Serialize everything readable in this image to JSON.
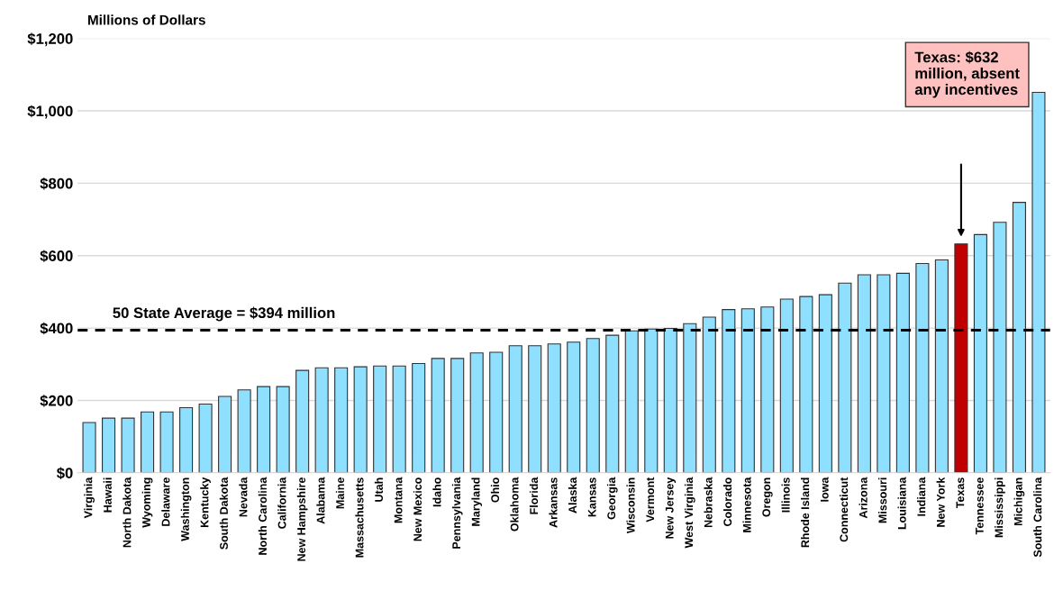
{
  "chart_data": {
    "type": "bar",
    "ylabel": "Millions of Dollars",
    "categories": [
      "Virginia",
      "Hawaii",
      "North Dakota",
      "Wyoming",
      "Delaware",
      "Washington",
      "Kentucky",
      "South Dakota",
      "Nevada",
      "North Carolina",
      "California",
      "New Hampshire",
      "Alabama",
      "Maine",
      "Massachusetts",
      "Utah",
      "Montana",
      "New Mexico",
      "Idaho",
      "Pennsylvania",
      "Maryland",
      "Ohio",
      "Oklahoma",
      "Florida",
      "Arkansas",
      "Alaska",
      "Kansas",
      "Georgia",
      "Wisconsin",
      "Vermont",
      "New Jersey",
      "West Virginia",
      "Nebraska",
      "Colorado",
      "Minnesota",
      "Oregon",
      "Illinois",
      "Rhode Island",
      "Iowa",
      "Connecticut",
      "Arizona",
      "Missouri",
      "Louisiana",
      "Indiana",
      "New York",
      "Texas",
      "Tennessee",
      "Mississippi",
      "Michigan",
      "South Carolina"
    ],
    "values": [
      139,
      151,
      151,
      168,
      168,
      180,
      190,
      211,
      229,
      238,
      238,
      283,
      290,
      290,
      293,
      295,
      295,
      302,
      316,
      316,
      331,
      333,
      351,
      351,
      356,
      361,
      371,
      380,
      392,
      397,
      399,
      412,
      430,
      451,
      453,
      458,
      480,
      487,
      492,
      524,
      547,
      547,
      551,
      578,
      588,
      632,
      658,
      692,
      747,
      1051
    ],
    "colors": [
      "#8fdfff",
      "#8fdfff",
      "#8fdfff",
      "#8fdfff",
      "#8fdfff",
      "#8fdfff",
      "#8fdfff",
      "#8fdfff",
      "#8fdfff",
      "#8fdfff",
      "#8fdfff",
      "#8fdfff",
      "#8fdfff",
      "#8fdfff",
      "#8fdfff",
      "#8fdfff",
      "#8fdfff",
      "#8fdfff",
      "#8fdfff",
      "#8fdfff",
      "#8fdfff",
      "#8fdfff",
      "#8fdfff",
      "#8fdfff",
      "#8fdfff",
      "#8fdfff",
      "#8fdfff",
      "#8fdfff",
      "#8fdfff",
      "#8fdfff",
      "#8fdfff",
      "#8fdfff",
      "#8fdfff",
      "#8fdfff",
      "#8fdfff",
      "#8fdfff",
      "#8fdfff",
      "#8fdfff",
      "#8fdfff",
      "#8fdfff",
      "#8fdfff",
      "#8fdfff",
      "#8fdfff",
      "#8fdfff",
      "#8fdfff",
      "#c00000",
      "#8fdfff",
      "#8fdfff",
      "#8fdfff",
      "#8fdfff"
    ],
    "ylim": [
      0,
      1200
    ],
    "yticks": [
      {
        "value": 0,
        "label": "$0"
      },
      {
        "value": 200,
        "label": "$200"
      },
      {
        "value": 400,
        "label": "$400"
      },
      {
        "value": 600,
        "label": "$600"
      },
      {
        "value": 800,
        "label": "$800"
      },
      {
        "value": 1000,
        "label": "$1,000"
      },
      {
        "value": 1200,
        "label": "$1,200"
      }
    ],
    "grid": "y",
    "ref_lines": [
      {
        "axis": "y",
        "value": 394,
        "label": "50 State Average = $394 million",
        "color": "#000000",
        "line_style": "dashed"
      }
    ],
    "annotations": [
      "Texas: $632\nmillion, absent\nany incentives"
    ]
  }
}
